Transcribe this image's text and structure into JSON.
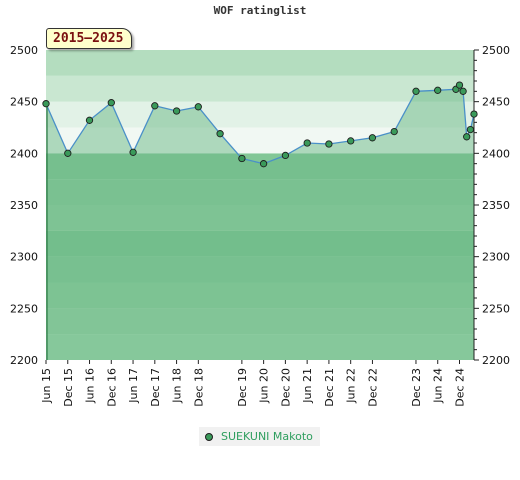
{
  "chart_data": {
    "type": "line",
    "title": "WOF ratinglist",
    "date_range_label": "2015–2025",
    "ylim": [
      2200,
      2500
    ],
    "yticks": [
      2200,
      2250,
      2300,
      2350,
      2400,
      2450,
      2500
    ],
    "x_tick_labels": [
      "Jun 15",
      "Dec 15",
      "Jun 16",
      "Dec 16",
      "Jun 17",
      "Dec 17",
      "Jun 18",
      "Dec 18",
      "Dec 19",
      "Jun 20",
      "Dec 20",
      "Jun 21",
      "Dec 21",
      "Jun 22",
      "Dec 22",
      "Dec 23",
      "Jun 24",
      "Dec 24"
    ],
    "series": [
      {
        "name": "SUEKUNI Makoto",
        "color": "#4a90c8",
        "marker_color": "#3a9a5a",
        "points": [
          {
            "x": "2015-06",
            "y": 2448
          },
          {
            "x": "2015-12",
            "y": 2400
          },
          {
            "x": "2016-06",
            "y": 2432
          },
          {
            "x": "2016-12",
            "y": 2449
          },
          {
            "x": "2017-06",
            "y": 2401
          },
          {
            "x": "2017-12",
            "y": 2446
          },
          {
            "x": "2018-06",
            "y": 2441
          },
          {
            "x": "2018-12",
            "y": 2445
          },
          {
            "x": "2019-06",
            "y": 2419
          },
          {
            "x": "2019-12",
            "y": 2395
          },
          {
            "x": "2020-06",
            "y": 2390
          },
          {
            "x": "2020-12",
            "y": 2398
          },
          {
            "x": "2021-06",
            "y": 2410
          },
          {
            "x": "2021-12",
            "y": 2409
          },
          {
            "x": "2022-06",
            "y": 2412
          },
          {
            "x": "2022-12",
            "y": 2415
          },
          {
            "x": "2023-06",
            "y": 2421
          },
          {
            "x": "2023-12",
            "y": 2460
          },
          {
            "x": "2024-06",
            "y": 2461
          },
          {
            "x": "2024-11",
            "y": 2462
          },
          {
            "x": "2024-12",
            "y": 2466
          },
          {
            "x": "2025-01",
            "y": 2460
          },
          {
            "x": "2025-02",
            "y": 2416
          },
          {
            "x": "2025-03",
            "y": 2423
          },
          {
            "x": "2025-04",
            "y": 2438
          }
        ]
      }
    ],
    "background_bands": [
      {
        "from": 2200,
        "to": 2225,
        "color": "#a2d8b0"
      },
      {
        "from": 2225,
        "to": 2250,
        "color": "#9ad3a9"
      },
      {
        "from": 2250,
        "to": 2275,
        "color": "#90cea1"
      },
      {
        "from": 2275,
        "to": 2300,
        "color": "#86c99a"
      },
      {
        "from": 2300,
        "to": 2325,
        "color": "#7cc492"
      },
      {
        "from": 2325,
        "to": 2350,
        "color": "#92cfa3"
      },
      {
        "from": 2350,
        "to": 2375,
        "color": "#8acb9c"
      },
      {
        "from": 2375,
        "to": 2400,
        "color": "#82c796"
      },
      {
        "from": 2400,
        "to": 2425,
        "color": "#f1f8f3"
      },
      {
        "from": 2425,
        "to": 2450,
        "color": "#e2f2e7"
      },
      {
        "from": 2450,
        "to": 2475,
        "color": "#c9e7d1"
      },
      {
        "from": 2475,
        "to": 2500,
        "color": "#b4ddbf"
      }
    ],
    "area_fill_color": "#6ab886",
    "grid": false,
    "legend_position": "bottom-center"
  }
}
